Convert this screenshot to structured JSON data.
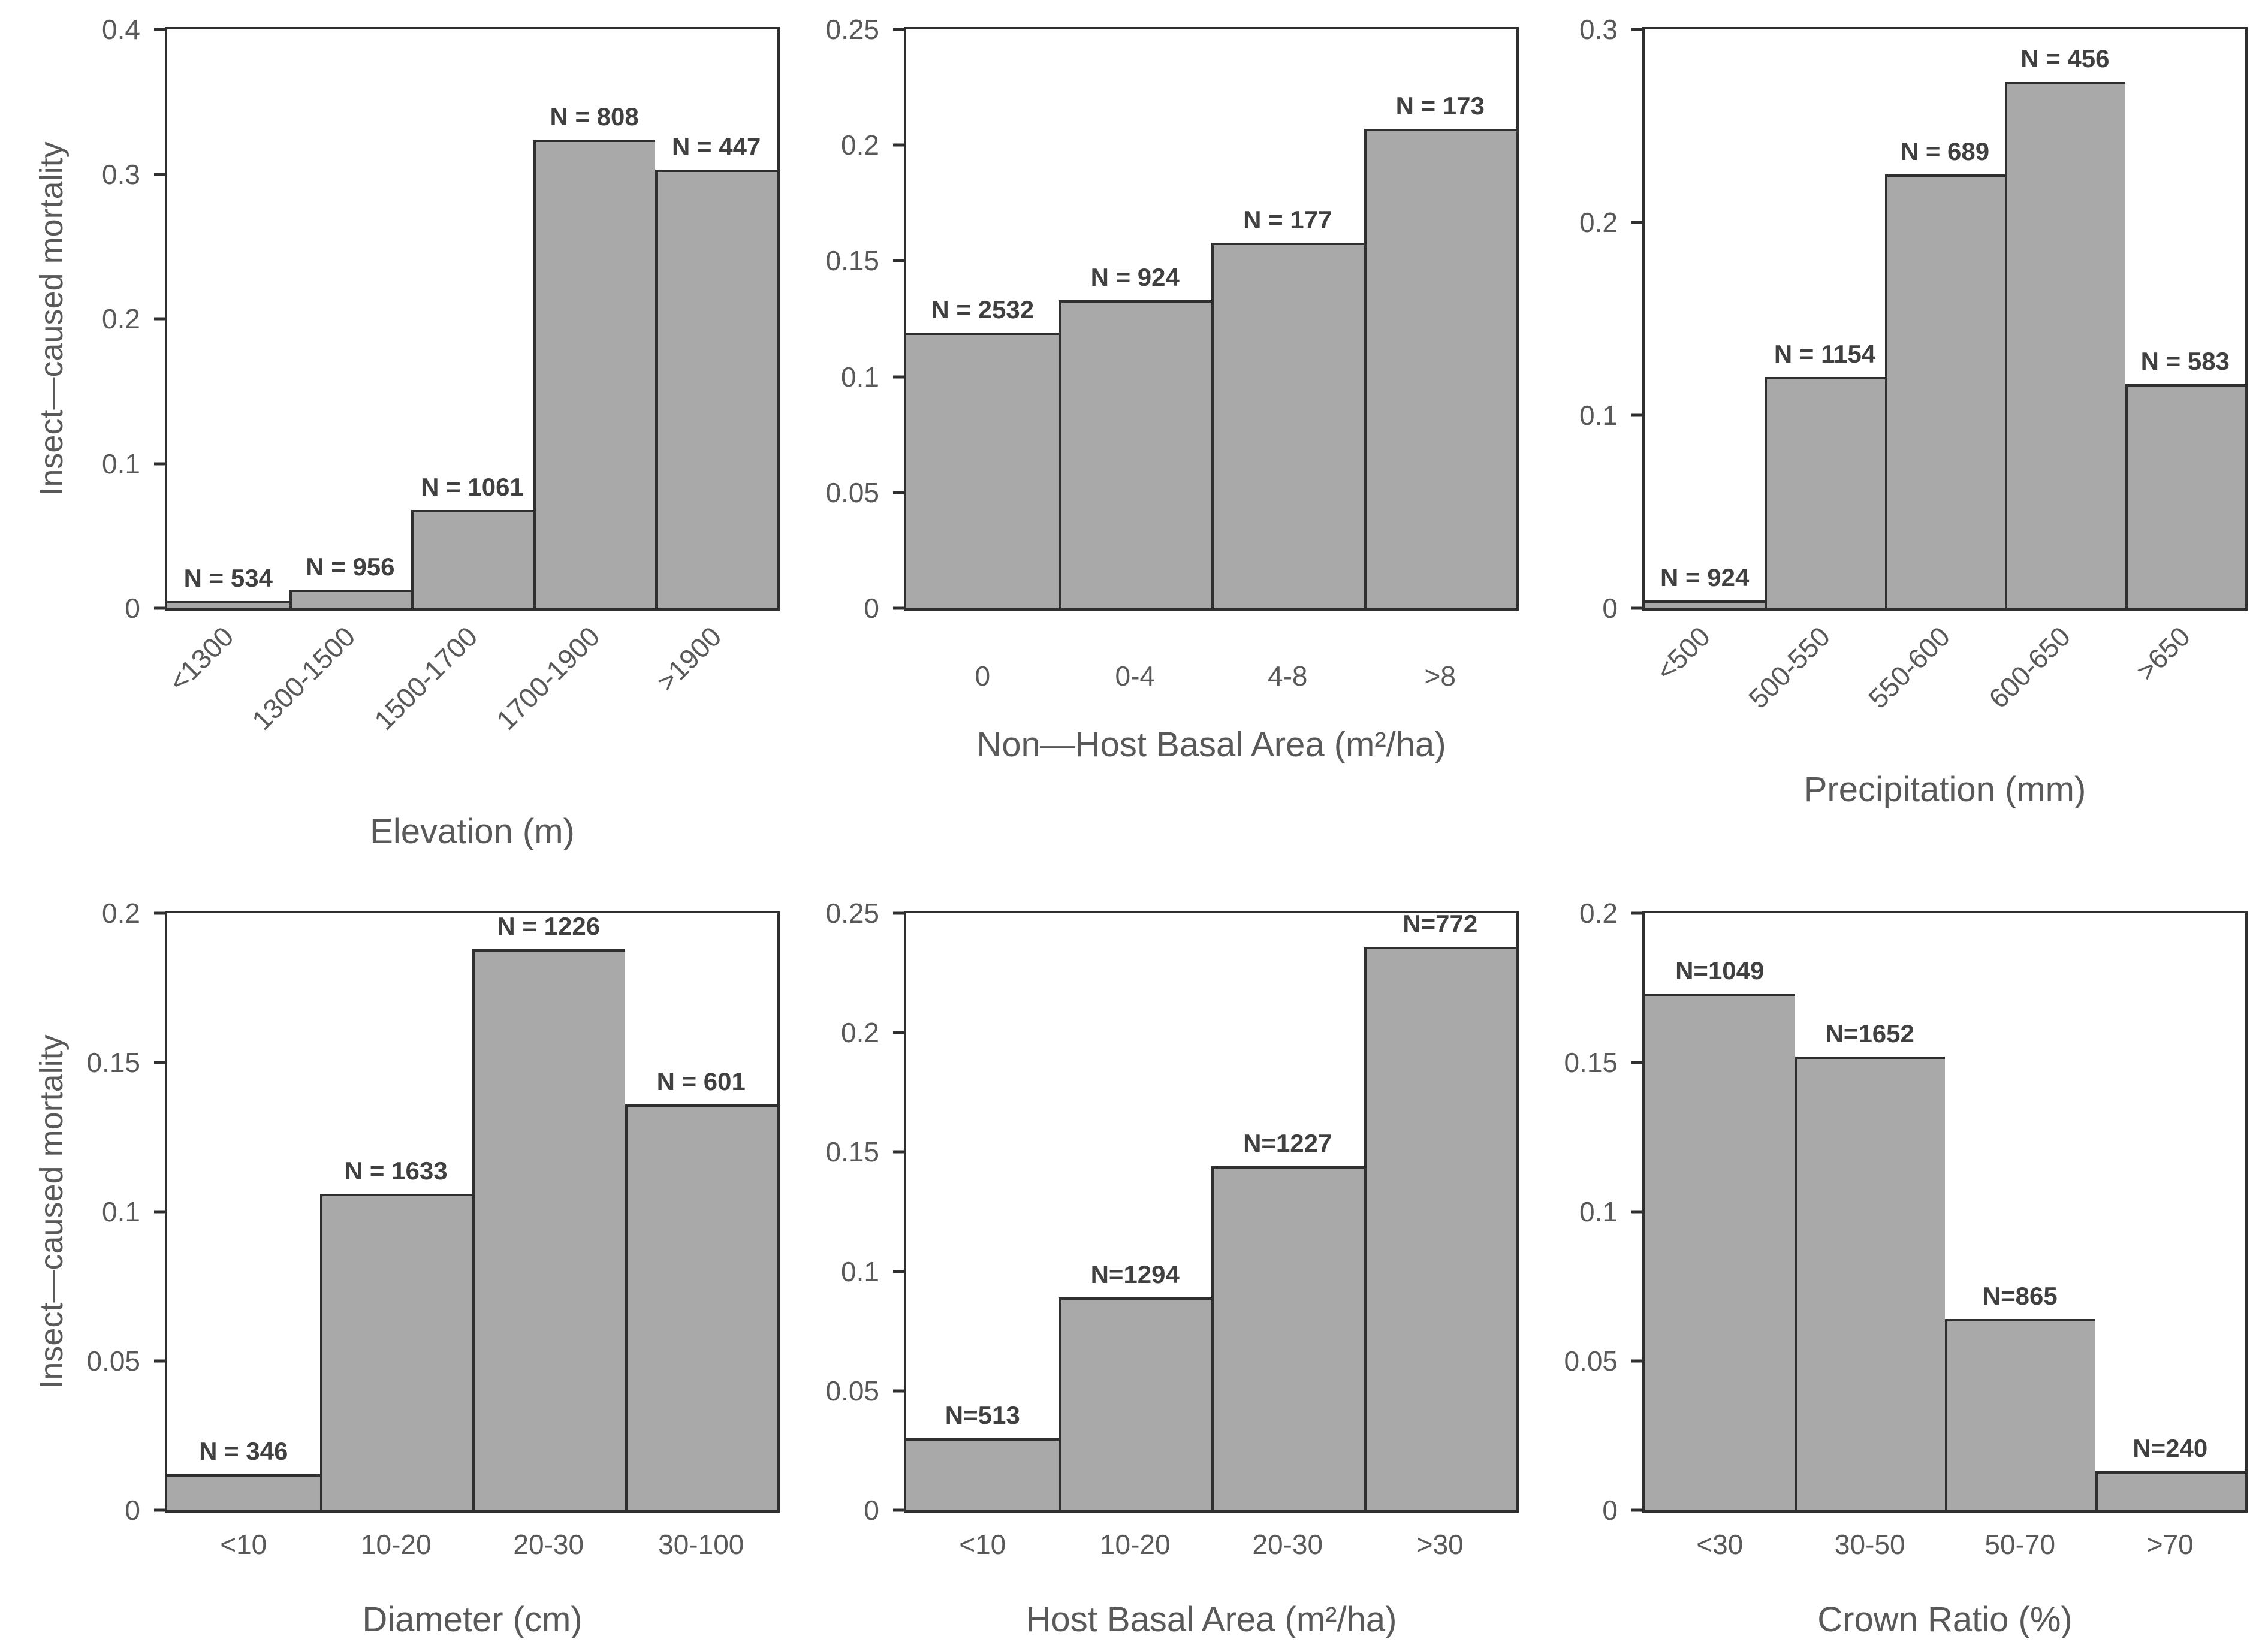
{
  "figure": {
    "description": "Six-panel histogram figure of insect-caused mortality",
    "background": "#ffffff"
  },
  "colors": {
    "bar_fill": "#a9a9a9",
    "bar_border": "#2f2f2f",
    "axis_line": "#2f2f2f",
    "tick_text": "#595959",
    "title_text": "#595959",
    "n_label_text": "#404040"
  },
  "chart_data": [
    {
      "id": "elevation",
      "type": "bar",
      "title": "",
      "xlabel": "Elevation (m)",
      "ylabel": "Insect—caused mortality",
      "ylim": [
        0,
        0.4
      ],
      "ytick_labels": [
        "0",
        "0.1",
        "0.2",
        "0.3",
        "0.4"
      ],
      "categories": [
        "<1300",
        "1300-1500",
        "1500-1700",
        "1700-1900",
        ">1900"
      ],
      "values": [
        0.005,
        0.013,
        0.068,
        0.324,
        0.303
      ],
      "n_labels": [
        "N = 534",
        "N = 956",
        "N = 1061",
        "N = 808",
        "N = 447"
      ],
      "xtick_rotation": 45,
      "grid": false,
      "legend": false
    },
    {
      "id": "non-host-basal-area",
      "type": "bar",
      "title": "",
      "xlabel": "Non—Host Basal Area (m²/ha)",
      "ylabel": "",
      "ylim": [
        0,
        0.25
      ],
      "ytick_labels": [
        "0",
        "0.05",
        "0.1",
        "0.15",
        "0.2",
        "0.25"
      ],
      "categories": [
        "0",
        "0-4",
        "4-8",
        ">8"
      ],
      "values": [
        0.119,
        0.133,
        0.158,
        0.207
      ],
      "n_labels": [
        "N = 2532",
        "N = 924",
        "N = 177",
        "N = 173"
      ],
      "xtick_rotation": 0,
      "grid": false,
      "legend": false
    },
    {
      "id": "precipitation",
      "type": "bar",
      "title": "",
      "xlabel": "Precipitation (mm)",
      "ylabel": "",
      "ylim": [
        0,
        0.3
      ],
      "ytick_labels": [
        "0",
        "0.1",
        "0.2",
        "0.3"
      ],
      "categories": [
        "<500",
        "500-550",
        "550-600",
        "600-650",
        ">650"
      ],
      "values": [
        0.004,
        0.12,
        0.225,
        0.273,
        0.116
      ],
      "n_labels": [
        "N = 924",
        "N = 1154",
        "N = 689",
        "N = 456",
        "N = 583"
      ],
      "xtick_rotation": 45,
      "grid": false,
      "legend": false
    },
    {
      "id": "diameter",
      "type": "bar",
      "title": "",
      "xlabel": "Diameter (cm)",
      "ylabel": "Insect—caused mortality",
      "ylim": [
        0,
        0.2
      ],
      "ytick_labels": [
        "0",
        "0.05",
        "0.1",
        "0.15",
        "0.2"
      ],
      "categories": [
        "<10",
        "10-20",
        "20-30",
        "30-100"
      ],
      "values": [
        0.012,
        0.106,
        0.188,
        0.136
      ],
      "n_labels": [
        "N = 346",
        "N = 1633",
        "N = 1226",
        "N = 601"
      ],
      "xtick_rotation": 0,
      "grid": false,
      "legend": false
    },
    {
      "id": "host-basal-area",
      "type": "bar",
      "title": "",
      "xlabel": "Host Basal Area (m²/ha)",
      "ylabel": "",
      "ylim": [
        0,
        0.25
      ],
      "ytick_labels": [
        "0",
        "0.05",
        "0.1",
        "0.15",
        "0.2",
        "0.25"
      ],
      "categories": [
        "<10",
        "10-20",
        "20-30",
        ">30"
      ],
      "values": [
        0.03,
        0.089,
        0.144,
        0.236
      ],
      "n_labels": [
        "N=513",
        "N=1294",
        "N=1227",
        "N=772"
      ],
      "xtick_rotation": 0,
      "grid": false,
      "legend": false
    },
    {
      "id": "crown-ratio",
      "type": "bar",
      "title": "",
      "xlabel": "Crown Ratio (%)",
      "ylabel": "",
      "ylim": [
        0,
        0.2
      ],
      "ytick_labels": [
        "0",
        "0.05",
        "0.1",
        "0.15",
        "0.2"
      ],
      "categories": [
        "<30",
        "30-50",
        "50-70",
        ">70"
      ],
      "values": [
        0.173,
        0.152,
        0.064,
        0.013
      ],
      "n_labels": [
        "N=1049",
        "N=1652",
        "N=865",
        "N=240"
      ],
      "xtick_rotation": 0,
      "grid": false,
      "legend": false
    }
  ]
}
